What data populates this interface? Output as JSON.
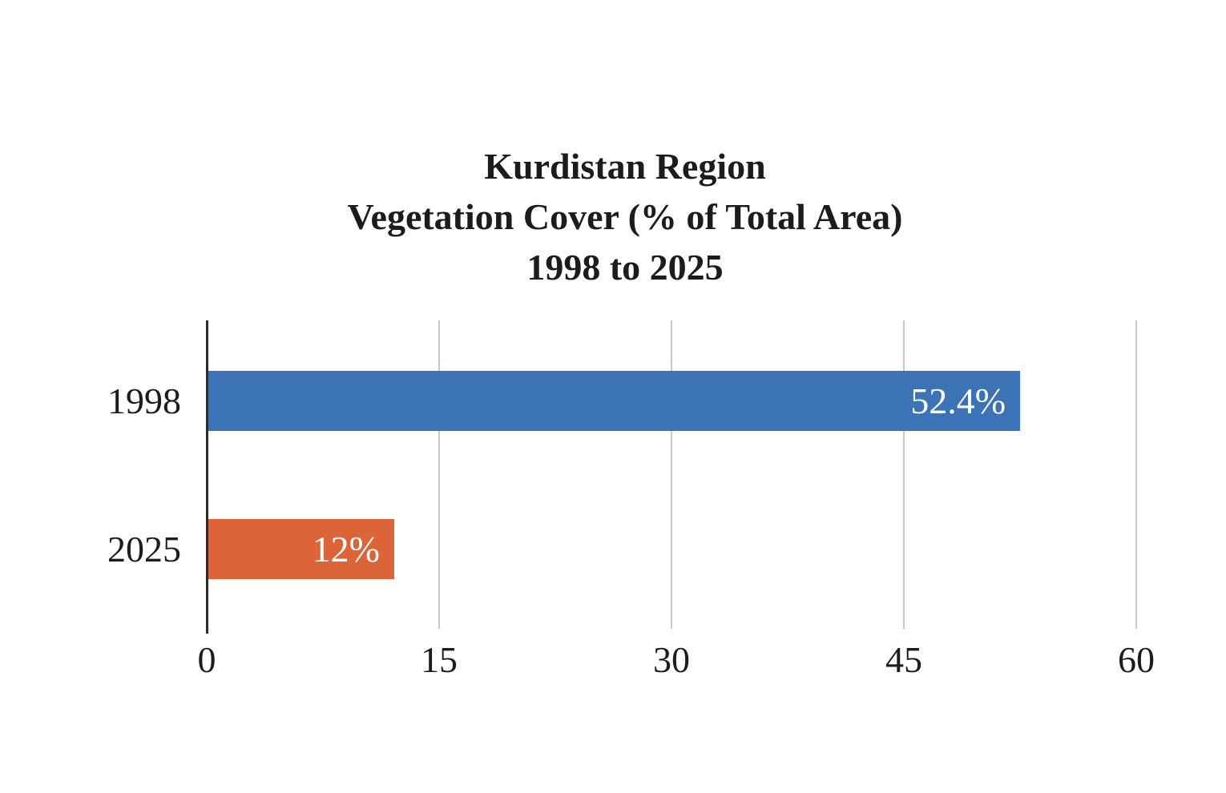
{
  "chart_data": {
    "type": "bar",
    "orientation": "horizontal",
    "title": "Kurdistan Region",
    "subtitle": "Vegetation Cover (% of Total Area)",
    "subtitle2": "1998 to 2025",
    "categories": [
      "1998",
      "2025"
    ],
    "values": [
      52.4,
      12
    ],
    "value_labels": [
      "52.4%",
      "12%"
    ],
    "bar_colors": [
      "#3B73B6",
      "#DD6439"
    ],
    "xlabel": "",
    "ylabel": "",
    "xlim": [
      0,
      60
    ],
    "x_ticks": [
      0,
      15,
      30,
      45,
      60
    ],
    "x_tick_labels": [
      "0",
      "15",
      "30",
      "45",
      "60"
    ],
    "grid": true,
    "legend": false,
    "gridline_color": "#C8C8C8",
    "axis_color": "#2B2B2B",
    "text_color": "#1C1C1C",
    "value_label_position": "inside-end",
    "value_label_color": "#FFFFFF"
  }
}
